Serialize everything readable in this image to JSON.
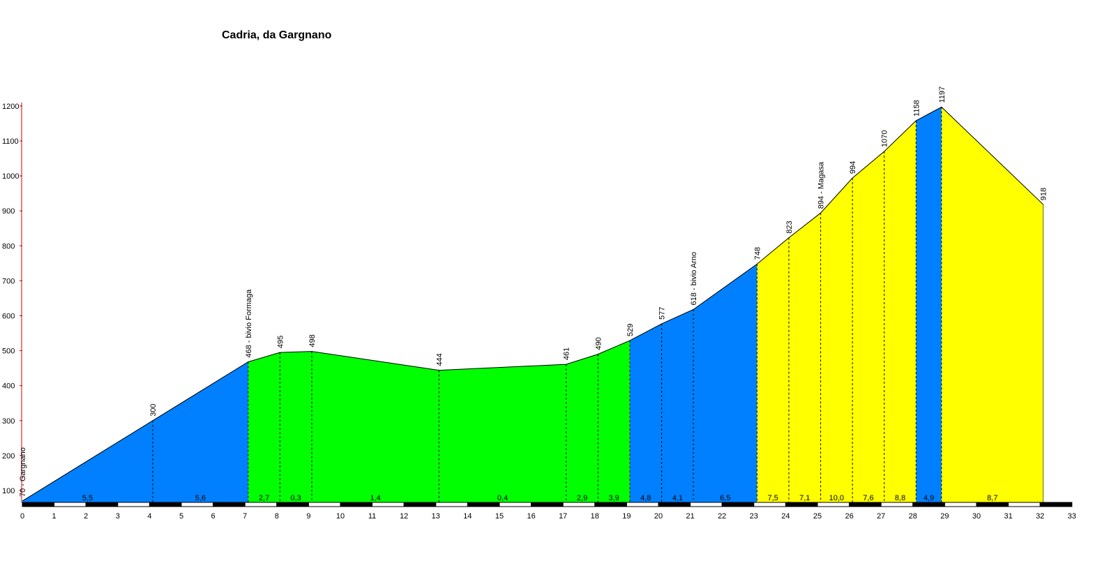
{
  "chart_data": {
    "type": "area",
    "title": "Cadria, da Gargnano",
    "xlabel": "",
    "ylabel": "",
    "xlim": [
      0,
      33
    ],
    "ylim": [
      60,
      1200
    ],
    "yticks": [
      100,
      200,
      300,
      400,
      500,
      600,
      700,
      800,
      900,
      1000,
      1100,
      1200
    ],
    "xticks": [
      0,
      1,
      2,
      3,
      4,
      5,
      6,
      7,
      8,
      9,
      10,
      11,
      12,
      13,
      14,
      15,
      16,
      17,
      18,
      19,
      20,
      21,
      22,
      23,
      24,
      25,
      26,
      27,
      28,
      29,
      30,
      31,
      32,
      33
    ],
    "grid": false,
    "points": [
      {
        "x": 0.0,
        "y": 70,
        "label": "70 - Gargnano"
      },
      {
        "x": 4.1,
        "y": 300,
        "label": "300"
      },
      {
        "x": 7.1,
        "y": 468,
        "label": "468 - bivio Formaga"
      },
      {
        "x": 8.1,
        "y": 495,
        "label": "495"
      },
      {
        "x": 9.1,
        "y": 498,
        "label": "498"
      },
      {
        "x": 13.1,
        "y": 444,
        "label": "444"
      },
      {
        "x": 17.1,
        "y": 461,
        "label": "461"
      },
      {
        "x": 18.1,
        "y": 490,
        "label": "490"
      },
      {
        "x": 19.1,
        "y": 529,
        "label": "529"
      },
      {
        "x": 20.1,
        "y": 577,
        "label": "577"
      },
      {
        "x": 21.1,
        "y": 618,
        "label": "618 - bivio Arno"
      },
      {
        "x": 23.1,
        "y": 748,
        "label": "748"
      },
      {
        "x": 24.1,
        "y": 823,
        "label": "823"
      },
      {
        "x": 25.1,
        "y": 894,
        "label": "894 - Magasa"
      },
      {
        "x": 26.1,
        "y": 994,
        "label": "994"
      },
      {
        "x": 27.1,
        "y": 1070,
        "label": "1070"
      },
      {
        "x": 28.1,
        "y": 1158,
        "label": "1158"
      },
      {
        "x": 28.9,
        "y": 1197,
        "label": "1197"
      },
      {
        "x": 32.1,
        "y": 918,
        "label": "918"
      }
    ],
    "segments": [
      {
        "gradient": "5,5",
        "color": "#0080ff"
      },
      {
        "gradient": "5,6",
        "color": "#0080ff"
      },
      {
        "gradient": "2,7",
        "color": "#00ff00"
      },
      {
        "gradient": "0,3",
        "color": "#00ff00"
      },
      {
        "gradient": "1,4",
        "color": "#00ff00"
      },
      {
        "gradient": "0,4",
        "color": "#00ff00"
      },
      {
        "gradient": "2,9",
        "color": "#00ff00"
      },
      {
        "gradient": "3,9",
        "color": "#00ff00"
      },
      {
        "gradient": "4,8",
        "color": "#0080ff"
      },
      {
        "gradient": "4,1",
        "color": "#0080ff"
      },
      {
        "gradient": "6,5",
        "color": "#0080ff"
      },
      {
        "gradient": "7,5",
        "color": "#ffff00"
      },
      {
        "gradient": "7,1",
        "color": "#ffff00"
      },
      {
        "gradient": "10,0",
        "color": "#ffff00"
      },
      {
        "gradient": "7,6",
        "color": "#ffff00"
      },
      {
        "gradient": "8,8",
        "color": "#ffff00"
      },
      {
        "gradient": "4,9",
        "color": "#0080ff"
      },
      {
        "gradient": "8,7",
        "color": "#ffff00"
      }
    ],
    "colors": {
      "blue": "#0080ff",
      "green": "#00ff00",
      "yellow": "#ffff00",
      "axis": "#000000",
      "ytick_mark": "#cc0000"
    }
  }
}
